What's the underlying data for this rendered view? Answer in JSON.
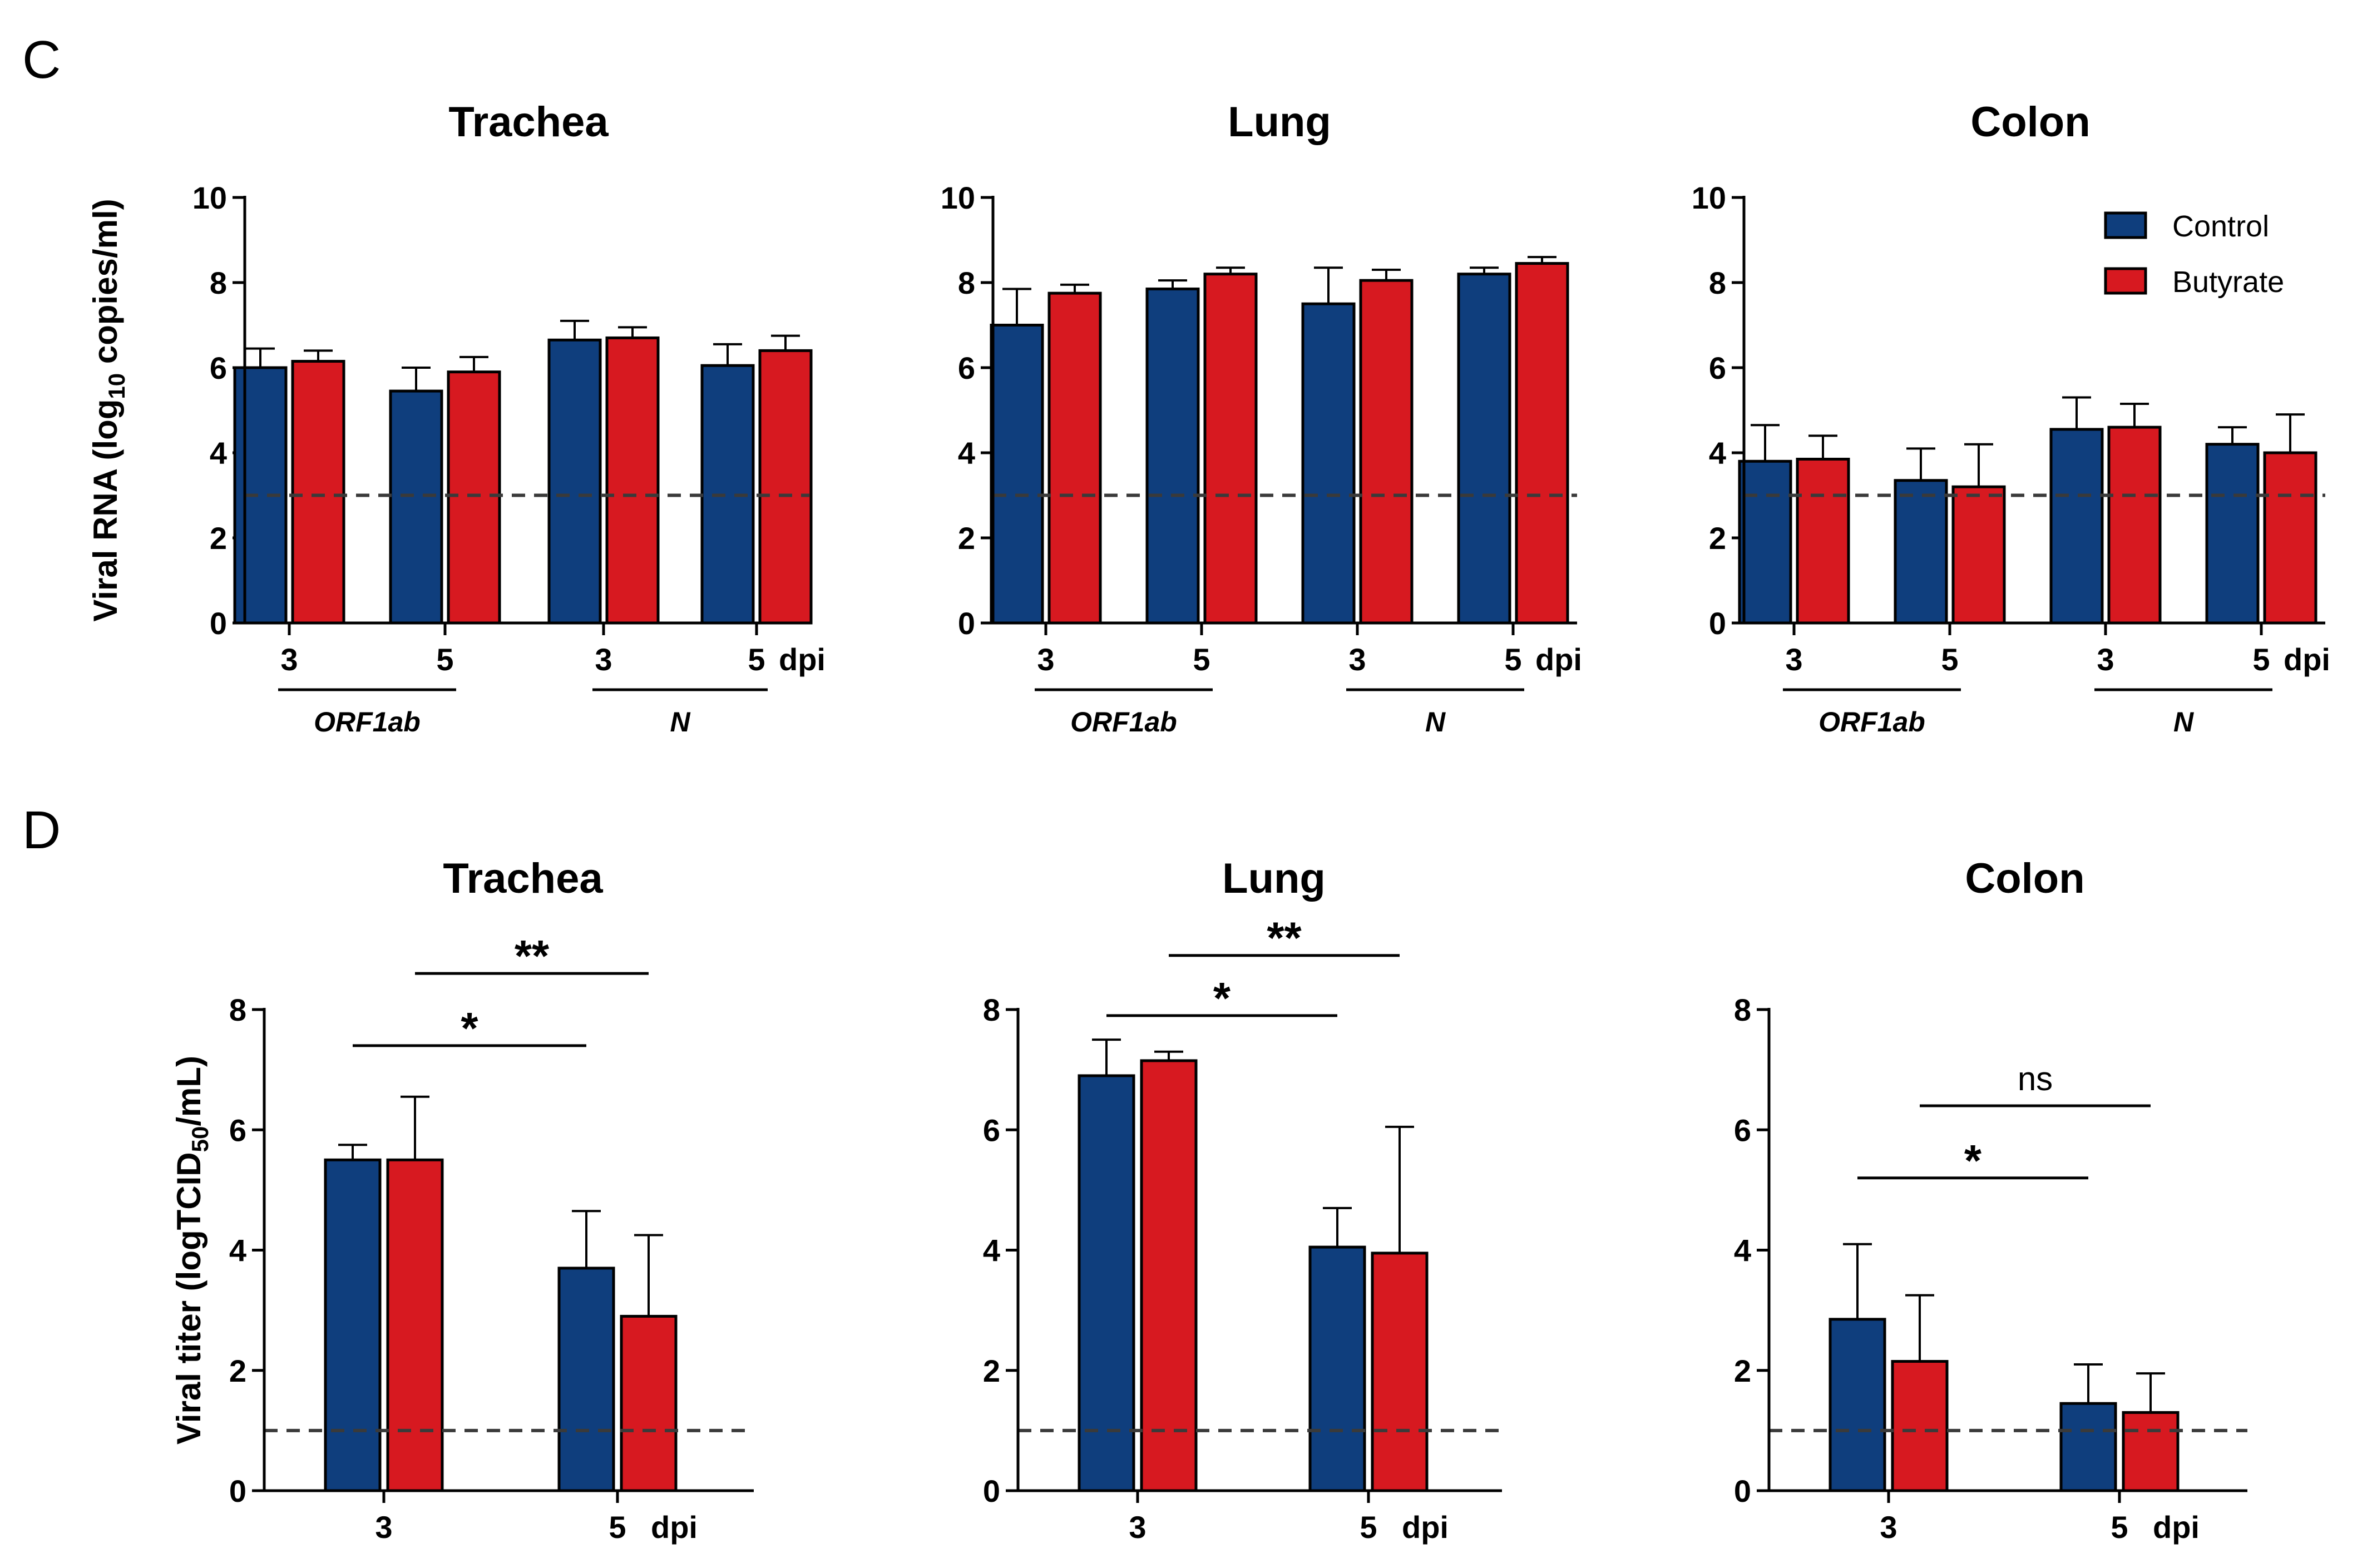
{
  "colors": {
    "control": "#0f3e7d",
    "butyrate": "#d71920",
    "axis": "#000000",
    "limit": "#3a3a3a"
  },
  "panels": [
    {
      "letter": "C"
    },
    {
      "letter": "D"
    }
  ],
  "chart_data": [
    {
      "panel": "C",
      "type": "bar",
      "title": "Trachea",
      "ylabel_main": "Viral RNA (log",
      "ylabel_sub": "10",
      "ylabel_end": " copies/ml)",
      "ylim": [
        0,
        10
      ],
      "yticks": [
        "0",
        "2",
        "4",
        "6",
        "8",
        "10"
      ],
      "detection_limit": 3,
      "groups": [
        {
          "label": "3",
          "gene": "ORF1ab",
          "control": 6.0,
          "control_err": 0.45,
          "butyrate": 6.15,
          "butyrate_err": 0.25
        },
        {
          "label": "5",
          "gene": "ORF1ab",
          "control": 5.45,
          "control_err": 0.55,
          "butyrate": 5.9,
          "butyrate_err": 0.35
        },
        {
          "label": "3",
          "gene": "N",
          "control": 6.65,
          "control_err": 0.45,
          "butyrate": 6.7,
          "butyrate_err": 0.25
        },
        {
          "label": "5",
          "gene": "N",
          "control": 6.05,
          "control_err": 0.5,
          "butyrate": 6.4,
          "butyrate_err": 0.35
        }
      ],
      "gene_labels": [
        "ORF1ab",
        "N"
      ],
      "unit_label": "dpi",
      "series": [
        "Control",
        "Butyrate"
      ]
    },
    {
      "panel": "C",
      "type": "bar",
      "title": "Lung",
      "ylim": [
        0,
        10
      ],
      "yticks": [
        "0",
        "2",
        "4",
        "6",
        "8",
        "10"
      ],
      "detection_limit": 3,
      "groups": [
        {
          "label": "3",
          "gene": "ORF1ab",
          "control": 7.0,
          "control_err": 0.85,
          "butyrate": 7.75,
          "butyrate_err": 0.2
        },
        {
          "label": "5",
          "gene": "ORF1ab",
          "control": 7.85,
          "control_err": 0.2,
          "butyrate": 8.2,
          "butyrate_err": 0.15
        },
        {
          "label": "3",
          "gene": "N",
          "control": 7.5,
          "control_err": 0.85,
          "butyrate": 8.05,
          "butyrate_err": 0.25
        },
        {
          "label": "5",
          "gene": "N",
          "control": 8.2,
          "control_err": 0.15,
          "butyrate": 8.45,
          "butyrate_err": 0.15
        }
      ],
      "gene_labels": [
        "ORF1ab",
        "N"
      ],
      "unit_label": "dpi",
      "series": [
        "Control",
        "Butyrate"
      ]
    },
    {
      "panel": "C",
      "type": "bar",
      "title": "Colon",
      "ylim": [
        0,
        10
      ],
      "yticks": [
        "0",
        "2",
        "4",
        "6",
        "8",
        "10"
      ],
      "detection_limit": 3,
      "groups": [
        {
          "label": "3",
          "gene": "ORF1ab",
          "control": 3.8,
          "control_err": 0.85,
          "butyrate": 3.85,
          "butyrate_err": 0.55
        },
        {
          "label": "5",
          "gene": "ORF1ab",
          "control": 3.35,
          "control_err": 0.75,
          "butyrate": 3.2,
          "butyrate_err": 1.0
        },
        {
          "label": "3",
          "gene": "N",
          "control": 4.55,
          "control_err": 0.75,
          "butyrate": 4.6,
          "butyrate_err": 0.55
        },
        {
          "label": "5",
          "gene": "N",
          "control": 4.2,
          "control_err": 0.4,
          "butyrate": 4.0,
          "butyrate_err": 0.9
        }
      ],
      "gene_labels": [
        "ORF1ab",
        "N"
      ],
      "unit_label": "dpi",
      "series": [
        "Control",
        "Butyrate"
      ],
      "legend": [
        {
          "name": "Control",
          "color": "#0f3e7d"
        },
        {
          "name": "Butyrate",
          "color": "#d71920"
        }
      ]
    },
    {
      "panel": "D",
      "type": "bar",
      "title": "Trachea",
      "ylabel_main": "Viral titer (logTCID",
      "ylabel_sub": "50",
      "ylabel_end": "/mL)",
      "ylim": [
        0,
        8
      ],
      "yticks": [
        "0",
        "2",
        "4",
        "6",
        "8"
      ],
      "detection_limit": 1,
      "groups": [
        {
          "label": "3",
          "control": 5.5,
          "control_err": 0.25,
          "butyrate": 5.5,
          "butyrate_err": 1.05
        },
        {
          "label": "5",
          "control": 3.7,
          "control_err": 0.95,
          "butyrate": 2.9,
          "butyrate_err": 1.35
        }
      ],
      "unit_label": "dpi",
      "series": [
        "Control",
        "Butyrate"
      ],
      "significance": [
        {
          "label": "*",
          "from": "3-control",
          "to": "5-control"
        },
        {
          "label": "**",
          "from": "3-butyrate",
          "to": "5-butyrate"
        }
      ]
    },
    {
      "panel": "D",
      "type": "bar",
      "title": "Lung",
      "ylim": [
        0,
        8
      ],
      "yticks": [
        "0",
        "2",
        "4",
        "6",
        "8"
      ],
      "detection_limit": 1,
      "groups": [
        {
          "label": "3",
          "control": 6.9,
          "control_err": 0.6,
          "butyrate": 7.15,
          "butyrate_err": 0.15
        },
        {
          "label": "5",
          "control": 4.05,
          "control_err": 0.65,
          "butyrate": 3.95,
          "butyrate_err": 2.1
        }
      ],
      "unit_label": "dpi",
      "series": [
        "Control",
        "Butyrate"
      ],
      "significance": [
        {
          "label": "*",
          "from": "3-control",
          "to": "5-control"
        },
        {
          "label": "**",
          "from": "3-butyrate",
          "to": "5-butyrate"
        }
      ]
    },
    {
      "panel": "D",
      "type": "bar",
      "title": "Colon",
      "ylim": [
        0,
        8
      ],
      "yticks": [
        "0",
        "2",
        "4",
        "6",
        "8"
      ],
      "detection_limit": 1,
      "groups": [
        {
          "label": "3",
          "control": 2.85,
          "control_err": 1.25,
          "butyrate": 2.15,
          "butyrate_err": 1.1
        },
        {
          "label": "5",
          "control": 1.45,
          "control_err": 0.65,
          "butyrate": 1.3,
          "butyrate_err": 0.65
        }
      ],
      "unit_label": "dpi",
      "series": [
        "Control",
        "Butyrate"
      ],
      "significance": [
        {
          "label": "*",
          "from": "3-control",
          "to": "5-control"
        },
        {
          "label": "ns",
          "from": "3-butyrate",
          "to": "5-butyrate"
        }
      ]
    }
  ]
}
